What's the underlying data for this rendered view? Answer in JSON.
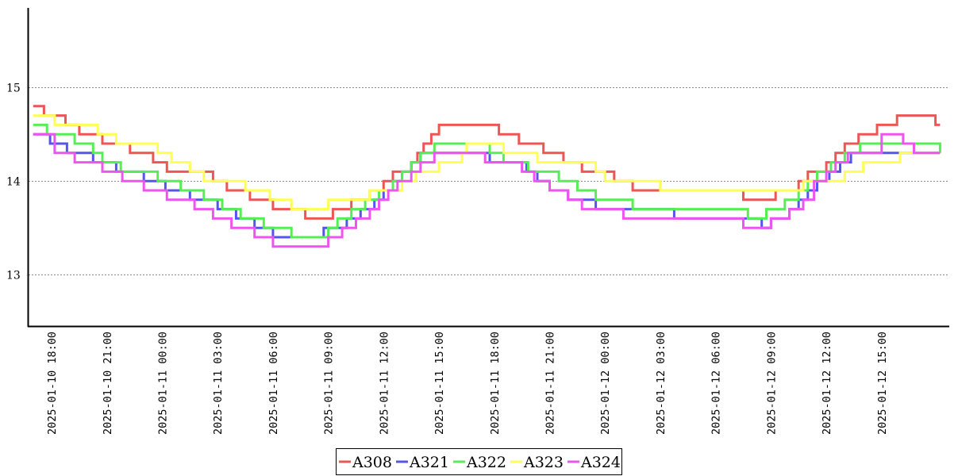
{
  "chart_data": {
    "type": "line",
    "step": true,
    "ylim": [
      12.45,
      15.85
    ],
    "xlim": [
      "2025-01-10 16:45",
      "2025-01-12 18:40"
    ],
    "y_ticks": [
      13,
      14,
      15
    ],
    "x_ticks": [
      "2025-01-10 18:00",
      "2025-01-10 21:00",
      "2025-01-11 00:00",
      "2025-01-11 03:00",
      "2025-01-11 06:00",
      "2025-01-11 09:00",
      "2025-01-11 12:00",
      "2025-01-11 15:00",
      "2025-01-11 18:00",
      "2025-01-11 21:00",
      "2025-01-12 00:00",
      "2025-01-12 03:00",
      "2025-01-12 06:00",
      "2025-01-12 09:00",
      "2025-01-12 12:00",
      "2025-01-12 15:00"
    ],
    "grid": "horizontal-dotted",
    "legend_position": "bottom-center",
    "series": [
      {
        "name": "A308",
        "color": "#ee5555",
        "points": [
          [
            "2025-01-10 17:00",
            14.8
          ],
          [
            "2025-01-10 17:35",
            14.7
          ],
          [
            "2025-01-10 18:45",
            14.6
          ],
          [
            "2025-01-10 19:30",
            14.5
          ],
          [
            "2025-01-10 20:45",
            14.4
          ],
          [
            "2025-01-10 22:15",
            14.3
          ],
          [
            "2025-01-10 23:30",
            14.2
          ],
          [
            "2025-01-11 00:15",
            14.1
          ],
          [
            "2025-01-11 02:45",
            14.0
          ],
          [
            "2025-01-11 03:30",
            13.9
          ],
          [
            "2025-01-11 04:45",
            13.8
          ],
          [
            "2025-01-11 06:00",
            13.7
          ],
          [
            "2025-01-11 07:45",
            13.6
          ],
          [
            "2025-01-11 09:15",
            13.7
          ],
          [
            "2025-01-11 10:15",
            13.8
          ],
          [
            "2025-01-11 11:15",
            13.9
          ],
          [
            "2025-01-11 12:00",
            14.0
          ],
          [
            "2025-01-11 12:30",
            14.1
          ],
          [
            "2025-01-11 13:30",
            14.2
          ],
          [
            "2025-01-11 13:50",
            14.3
          ],
          [
            "2025-01-11 14:10",
            14.4
          ],
          [
            "2025-01-11 14:35",
            14.5
          ],
          [
            "2025-01-11 15:00",
            14.6
          ],
          [
            "2025-01-11 16:45",
            14.6
          ],
          [
            "2025-01-11 18:15",
            14.5
          ],
          [
            "2025-01-11 19:20",
            14.4
          ],
          [
            "2025-01-11 20:40",
            14.3
          ],
          [
            "2025-01-11 21:45",
            14.2
          ],
          [
            "2025-01-11 22:45",
            14.1
          ],
          [
            "2025-01-12 00:30",
            14.0
          ],
          [
            "2025-01-12 01:30",
            13.9
          ],
          [
            "2025-01-12 07:30",
            13.8
          ],
          [
            "2025-01-12 09:15",
            13.9
          ],
          [
            "2025-01-12 10:30",
            14.0
          ],
          [
            "2025-01-12 11:00",
            14.1
          ],
          [
            "2025-01-12 12:00",
            14.2
          ],
          [
            "2025-01-12 12:30",
            14.3
          ],
          [
            "2025-01-12 13:00",
            14.4
          ],
          [
            "2025-01-12 13:45",
            14.5
          ],
          [
            "2025-01-12 14:45",
            14.6
          ],
          [
            "2025-01-12 15:50",
            14.7
          ],
          [
            "2025-01-12 17:55",
            14.6
          ],
          [
            "2025-01-12 18:10",
            14.6
          ]
        ]
      },
      {
        "name": "A321",
        "color": "#5555ee",
        "points": [
          [
            "2025-01-10 17:00",
            14.5
          ],
          [
            "2025-01-10 17:55",
            14.4
          ],
          [
            "2025-01-10 18:50",
            14.3
          ],
          [
            "2025-01-10 20:15",
            14.2
          ],
          [
            "2025-01-10 21:30",
            14.1
          ],
          [
            "2025-01-10 23:00",
            14.0
          ],
          [
            "2025-01-11 00:10",
            13.9
          ],
          [
            "2025-01-11 01:30",
            13.8
          ],
          [
            "2025-01-11 03:00",
            13.7
          ],
          [
            "2025-01-11 04:00",
            13.6
          ],
          [
            "2025-01-11 05:00",
            13.5
          ],
          [
            "2025-01-11 06:00",
            13.4
          ],
          [
            "2025-01-11 08:00",
            13.4
          ],
          [
            "2025-01-11 08:45",
            13.5
          ],
          [
            "2025-01-11 10:00",
            13.6
          ],
          [
            "2025-01-11 10:45",
            13.7
          ],
          [
            "2025-01-11 11:30",
            13.8
          ],
          [
            "2025-01-11 12:00",
            13.9
          ],
          [
            "2025-01-11 12:30",
            14.0
          ],
          [
            "2025-01-11 13:00",
            14.1
          ],
          [
            "2025-01-11 13:30",
            14.2
          ],
          [
            "2025-01-11 14:00",
            14.3
          ],
          [
            "2025-01-11 17:45",
            14.2
          ],
          [
            "2025-01-11 19:45",
            14.1
          ],
          [
            "2025-01-11 20:20",
            14.0
          ],
          [
            "2025-01-11 21:00",
            13.9
          ],
          [
            "2025-01-11 22:00",
            13.8
          ],
          [
            "2025-01-11 23:30",
            13.7
          ],
          [
            "2025-01-12 03:45",
            13.6
          ],
          [
            "2025-01-12 08:30",
            13.5
          ],
          [
            "2025-01-12 09:00",
            13.6
          ],
          [
            "2025-01-12 10:00",
            13.7
          ],
          [
            "2025-01-12 10:30",
            13.8
          ],
          [
            "2025-01-12 11:00",
            13.9
          ],
          [
            "2025-01-12 11:30",
            14.0
          ],
          [
            "2025-01-12 12:10",
            14.1
          ],
          [
            "2025-01-12 12:45",
            14.2
          ],
          [
            "2025-01-12 13:20",
            14.3
          ],
          [
            "2025-01-12 18:10",
            14.3
          ]
        ]
      },
      {
        "name": "A322",
        "color": "#55ee55",
        "points": [
          [
            "2025-01-10 17:00",
            14.6
          ],
          [
            "2025-01-10 17:45",
            14.5
          ],
          [
            "2025-01-10 19:15",
            14.4
          ],
          [
            "2025-01-10 20:15",
            14.3
          ],
          [
            "2025-01-10 20:45",
            14.2
          ],
          [
            "2025-01-10 21:45",
            14.1
          ],
          [
            "2025-01-10 23:45",
            14.0
          ],
          [
            "2025-01-11 01:00",
            13.9
          ],
          [
            "2025-01-11 02:15",
            13.8
          ],
          [
            "2025-01-11 03:15",
            13.7
          ],
          [
            "2025-01-11 04:15",
            13.6
          ],
          [
            "2025-01-11 05:30",
            13.5
          ],
          [
            "2025-01-11 07:00",
            13.4
          ],
          [
            "2025-01-11 08:00",
            13.4
          ],
          [
            "2025-01-11 09:00",
            13.5
          ],
          [
            "2025-01-11 09:30",
            13.6
          ],
          [
            "2025-01-11 10:15",
            13.7
          ],
          [
            "2025-01-11 11:00",
            13.8
          ],
          [
            "2025-01-11 11:45",
            13.9
          ],
          [
            "2025-01-11 12:30",
            14.0
          ],
          [
            "2025-01-11 13:00",
            14.1
          ],
          [
            "2025-01-11 13:30",
            14.2
          ],
          [
            "2025-01-11 14:00",
            14.3
          ],
          [
            "2025-01-11 14:45",
            14.4
          ],
          [
            "2025-01-11 17:45",
            14.3
          ],
          [
            "2025-01-11 18:30",
            14.2
          ],
          [
            "2025-01-11 19:50",
            14.1
          ],
          [
            "2025-01-11 21:30",
            14.0
          ],
          [
            "2025-01-11 22:30",
            13.9
          ],
          [
            "2025-01-11 23:30",
            13.8
          ],
          [
            "2025-01-12 01:30",
            13.7
          ],
          [
            "2025-01-12 07:45",
            13.6
          ],
          [
            "2025-01-12 08:45",
            13.7
          ],
          [
            "2025-01-12 09:45",
            13.8
          ],
          [
            "2025-01-12 10:30",
            13.9
          ],
          [
            "2025-01-12 11:00",
            14.0
          ],
          [
            "2025-01-12 11:30",
            14.1
          ],
          [
            "2025-01-12 12:15",
            14.2
          ],
          [
            "2025-01-12 13:00",
            14.3
          ],
          [
            "2025-01-12 13:50",
            14.4
          ],
          [
            "2025-01-12 18:10",
            14.3
          ]
        ]
      },
      {
        "name": "A323",
        "color": "#ffff55",
        "points": [
          [
            "2025-01-10 17:00",
            14.7
          ],
          [
            "2025-01-10 18:10",
            14.6
          ],
          [
            "2025-01-10 20:30",
            14.5
          ],
          [
            "2025-01-10 21:30",
            14.4
          ],
          [
            "2025-01-10 23:45",
            14.3
          ],
          [
            "2025-01-11 00:30",
            14.2
          ],
          [
            "2025-01-11 01:30",
            14.1
          ],
          [
            "2025-01-11 02:15",
            14.0
          ],
          [
            "2025-01-11 04:30",
            13.9
          ],
          [
            "2025-01-11 05:50",
            13.8
          ],
          [
            "2025-01-11 07:00",
            13.7
          ],
          [
            "2025-01-11 09:00",
            13.8
          ],
          [
            "2025-01-11 11:15",
            13.9
          ],
          [
            "2025-01-11 13:00",
            14.0
          ],
          [
            "2025-01-11 13:45",
            14.1
          ],
          [
            "2025-01-11 15:00",
            14.2
          ],
          [
            "2025-01-11 16:15",
            14.3
          ],
          [
            "2025-01-11 16:30",
            14.4
          ],
          [
            "2025-01-11 18:30",
            14.3
          ],
          [
            "2025-01-11 20:20",
            14.2
          ],
          [
            "2025-01-11 23:30",
            14.1
          ],
          [
            "2025-01-12 00:00",
            14.0
          ],
          [
            "2025-01-12 03:00",
            13.9
          ],
          [
            "2025-01-12 07:00",
            13.9
          ],
          [
            "2025-01-12 09:30",
            13.9
          ],
          [
            "2025-01-12 10:45",
            14.0
          ],
          [
            "2025-01-12 12:00",
            14.0
          ],
          [
            "2025-01-12 13:00",
            14.1
          ],
          [
            "2025-01-12 14:00",
            14.2
          ],
          [
            "2025-01-12 16:00",
            14.3
          ],
          [
            "2025-01-12 18:10",
            14.3
          ]
        ]
      },
      {
        "name": "A324",
        "color": "#ee55ee",
        "points": [
          [
            "2025-01-10 17:00",
            14.5
          ],
          [
            "2025-01-10 18:10",
            14.3
          ],
          [
            "2025-01-10 19:15",
            14.2
          ],
          [
            "2025-01-10 20:45",
            14.1
          ],
          [
            "2025-01-10 21:50",
            14.0
          ],
          [
            "2025-01-10 23:00",
            13.9
          ],
          [
            "2025-01-11 00:15",
            13.8
          ],
          [
            "2025-01-11 01:45",
            13.7
          ],
          [
            "2025-01-11 02:45",
            13.6
          ],
          [
            "2025-01-11 03:45",
            13.5
          ],
          [
            "2025-01-11 05:00",
            13.4
          ],
          [
            "2025-01-11 06:00",
            13.3
          ],
          [
            "2025-01-11 09:00",
            13.4
          ],
          [
            "2025-01-11 09:45",
            13.5
          ],
          [
            "2025-01-11 10:30",
            13.6
          ],
          [
            "2025-01-11 11:15",
            13.7
          ],
          [
            "2025-01-11 11:45",
            13.8
          ],
          [
            "2025-01-11 12:15",
            13.9
          ],
          [
            "2025-01-11 12:45",
            14.0
          ],
          [
            "2025-01-11 13:30",
            14.1
          ],
          [
            "2025-01-11 14:00",
            14.2
          ],
          [
            "2025-01-11 14:45",
            14.3
          ],
          [
            "2025-01-11 17:30",
            14.2
          ],
          [
            "2025-01-11 19:30",
            14.1
          ],
          [
            "2025-01-11 20:10",
            14.0
          ],
          [
            "2025-01-11 21:00",
            13.9
          ],
          [
            "2025-01-11 22:00",
            13.8
          ],
          [
            "2025-01-11 22:45",
            13.7
          ],
          [
            "2025-01-12 01:00",
            13.6
          ],
          [
            "2025-01-12 04:00",
            13.6
          ],
          [
            "2025-01-12 07:30",
            13.5
          ],
          [
            "2025-01-12 09:00",
            13.6
          ],
          [
            "2025-01-12 10:00",
            13.7
          ],
          [
            "2025-01-12 10:45",
            13.8
          ],
          [
            "2025-01-12 11:20",
            14.0
          ],
          [
            "2025-01-12 12:00",
            14.1
          ],
          [
            "2025-01-12 12:30",
            14.2
          ],
          [
            "2025-01-12 13:10",
            14.3
          ],
          [
            "2025-01-12 15:00",
            14.5
          ],
          [
            "2025-01-12 16:10",
            14.4
          ],
          [
            "2025-01-12 16:45",
            14.3
          ],
          [
            "2025-01-12 18:10",
            14.3
          ]
        ]
      }
    ]
  }
}
